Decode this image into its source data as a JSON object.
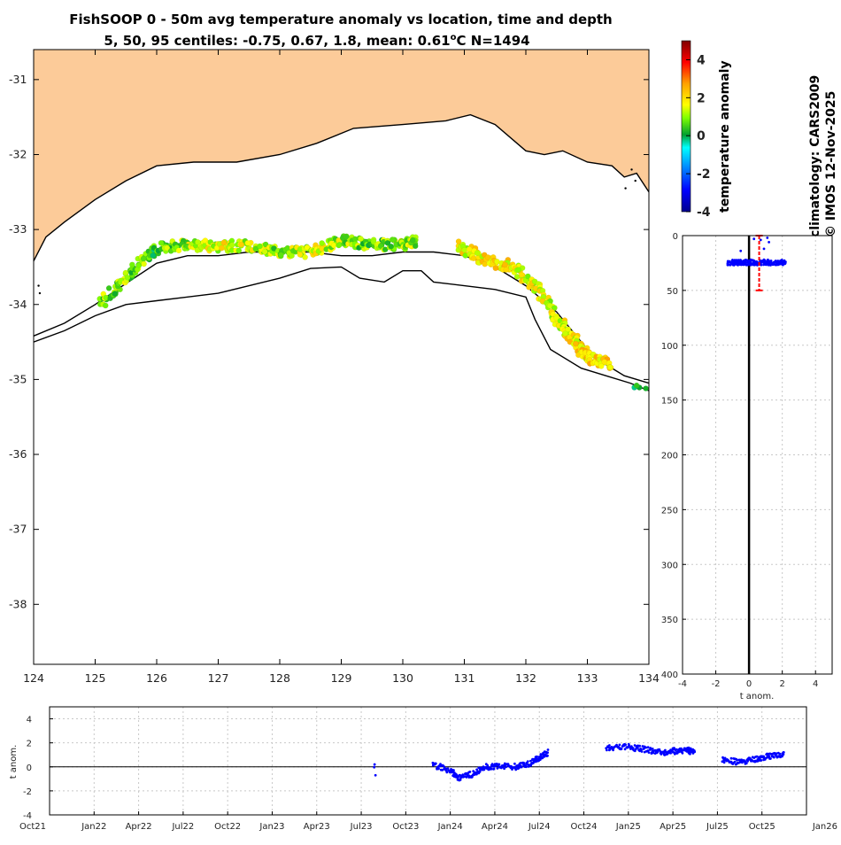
{
  "title_line1": "FishSOOP 0 - 50m avg temperature anomaly vs location, time and depth",
  "title_line2": "5, 50, 95 centiles: -0.75, 0.67, 1.8, mean: 0.61",
  "title_line2_unit": "o",
  "title_line2_tail": "C N=1494",
  "colorbar_label": "temperature anomaly",
  "climatology_label": "climatology: CARS2009",
  "copyright_label": "© IMOS 12-Nov-2025",
  "colors": {
    "land": "#fccb99",
    "coast": "#000000",
    "profile_points": "#0000ff",
    "centile_bar": "#ff0000"
  },
  "chart_data": [
    {
      "type": "scatter",
      "name": "map",
      "xlim": [
        124,
        134
      ],
      "ylim": [
        -38.8,
        -30.6
      ],
      "x_ticks": [
        124,
        125,
        126,
        127,
        128,
        129,
        130,
        131,
        132,
        133,
        134
      ],
      "y_ticks": [
        -31,
        -32,
        -33,
        -34,
        -35,
        -36,
        -37,
        -38
      ],
      "colorbar": {
        "min": -4,
        "max": 5,
        "ticks": [
          4,
          2,
          0,
          -2,
          -4
        ],
        "label": "temperature anomaly"
      },
      "observation_tracks": [
        {
          "lon": [
            125.1,
            125.6,
            126.0,
            126.5,
            127.0,
            127.5,
            128.0,
            128.5
          ],
          "lat": [
            -34.0,
            -33.55,
            -33.25,
            -33.2,
            -33.22,
            -33.22,
            -33.3,
            -33.3
          ],
          "anomaly": [
            0.8,
            1.0,
            0.5,
            1.2,
            1.6,
            1.4,
            1.0,
            1.4
          ]
        },
        {
          "lon": [
            128.5,
            129.0,
            129.5,
            130.0,
            130.2
          ],
          "lat": [
            -33.3,
            -33.15,
            -33.2,
            -33.2,
            -33.15
          ],
          "anomaly": [
            1.6,
            1.2,
            0.6,
            1.2,
            1.0
          ]
        },
        {
          "lon": [
            130.9,
            131.3,
            131.8,
            132.2,
            132.5,
            132.8,
            133.0,
            133.35
          ],
          "lat": [
            -33.2,
            -33.4,
            -33.5,
            -33.8,
            -34.2,
            -34.5,
            -34.7,
            -34.8
          ],
          "anomaly": [
            1.6,
            1.8,
            1.8,
            1.5,
            1.4,
            1.8,
            2.0,
            2.0
          ]
        },
        {
          "lon": [
            133.8,
            133.95
          ],
          "lat": [
            -35.08,
            -35.12
          ],
          "anomaly": [
            0.4,
            0.2
          ]
        }
      ]
    },
    {
      "type": "scatter",
      "name": "depth_profile",
      "xlabel": "t anom.",
      "xlim": [
        -4,
        5
      ],
      "ylim": [
        0,
        400
      ],
      "y_reversed": true,
      "x_ticks": [
        -4,
        -2,
        0,
        2,
        4
      ],
      "y_ticks": [
        0,
        50,
        100,
        150,
        200,
        250,
        300,
        350,
        400
      ],
      "points": [
        [
          -1.2,
          24
        ],
        [
          -1.0,
          25
        ],
        [
          -0.8,
          23
        ],
        [
          -0.6,
          26
        ],
        [
          -0.4,
          24
        ],
        [
          -0.2,
          25
        ],
        [
          0.0,
          23
        ],
        [
          0.2,
          26
        ],
        [
          0.4,
          24
        ],
        [
          0.6,
          25
        ],
        [
          0.8,
          23
        ],
        [
          1.0,
          26
        ],
        [
          1.2,
          24
        ],
        [
          1.4,
          25
        ],
        [
          1.6,
          23
        ],
        [
          1.8,
          24
        ],
        [
          2.0,
          25
        ],
        [
          2.2,
          24
        ],
        [
          -0.9,
          27
        ],
        [
          0.1,
          22
        ],
        [
          0.5,
          27
        ],
        [
          0.9,
          22
        ],
        [
          1.3,
          27
        ],
        [
          0.3,
          3
        ],
        [
          0.7,
          4
        ],
        [
          1.1,
          2
        ],
        [
          1.2,
          6
        ],
        [
          -0.5,
          14
        ],
        [
          0.9,
          12
        ]
      ],
      "centile_bar": {
        "x": 0.61,
        "depth_range": [
          0,
          50
        ]
      }
    },
    {
      "type": "scatter",
      "name": "time_series",
      "ylabel": "t anom.",
      "ylim": [
        -4,
        5
      ],
      "y_ticks": [
        -4,
        -2,
        0,
        2,
        4
      ],
      "x_ticks": [
        "Oct21",
        "Jan22",
        "Apr22",
        "Jul22",
        "Oct22",
        "Jan23",
        "Apr23",
        "Jul23",
        "Oct23",
        "Jan24",
        "Apr24",
        "Jul24",
        "Oct24",
        "Jan25",
        "Apr25",
        "Jul25",
        "Oct25",
        "Jan26"
      ],
      "segments": [
        {
          "t": [
            7.3,
            7.32
          ],
          "v": [
            0.2,
            -0.7
          ]
        },
        {
          "t": [
            8.6,
            9.0,
            9.2,
            9.5,
            9.8,
            10.1,
            10.5,
            10.8,
            11.0,
            11.2
          ],
          "v": [
            0.2,
            -0.3,
            -0.9,
            -0.6,
            0.0,
            0.1,
            0.0,
            0.3,
            0.8,
            1.2
          ]
        },
        {
          "t": [
            12.5,
            12.9,
            13.3,
            13.7,
            14.0,
            14.3,
            14.5
          ],
          "v": [
            1.6,
            1.7,
            1.5,
            1.2,
            1.3,
            1.4,
            1.2
          ]
        },
        {
          "t": [
            15.1,
            15.5,
            15.9,
            16.2,
            16.5
          ],
          "v": [
            0.6,
            0.4,
            0.7,
            0.9,
            1.1
          ]
        }
      ]
    }
  ]
}
